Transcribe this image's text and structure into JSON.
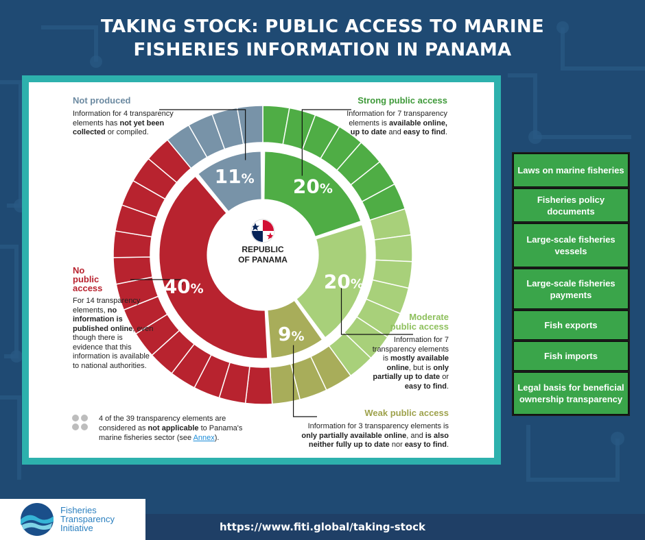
{
  "title_lines": [
    "TAKING STOCK: PUBLIC ACCESS TO MARINE",
    "FISHERIES INFORMATION IN PANAMA"
  ],
  "colors": {
    "strong": "#4fad45",
    "moderate": "#a8d07a",
    "weak": "#a8ad5a",
    "no_access": "#b8232f",
    "not_produced": "#7893a8",
    "panel": "#2db1ad",
    "element_box": "#3aa54a"
  },
  "chart_data": {
    "type": "pie",
    "center_label_lines": [
      "REPUBLIC",
      "OF PANAMA"
    ],
    "unit": "%",
    "slices": [
      {
        "label": "Strong public access",
        "value": 20,
        "elements": 7
      },
      {
        "label": "Moderate public access",
        "value": 20,
        "elements": 7
      },
      {
        "label": "Weak public access",
        "value": 9,
        "elements": 3
      },
      {
        "label": "No public access",
        "value": 40,
        "elements": 14
      },
      {
        "label": "Not produced",
        "value": 11,
        "elements": 4
      }
    ]
  },
  "labels": {
    "not_produced": {
      "title": "Not produced",
      "t1": "Information for 4 transparency elements has ",
      "b1": "not yet been collected",
      "t2": " or compiled."
    },
    "strong": {
      "title": "Strong public access",
      "t1": "Information for 7 transparency elements is ",
      "b1": "available online, up to date",
      "t2": " and ",
      "b2": "easy to find",
      "t3": "."
    },
    "moderate": {
      "title_l1": "Moderate",
      "title_l2": "public access",
      "t1": "Information for 7 transparency elements is ",
      "b1": "mostly available online",
      "t2": ", but is ",
      "b2": "only partially up to date",
      "t3": " or ",
      "b3": "easy to find",
      "t4": "."
    },
    "weak": {
      "title": "Weak public access",
      "t1": "Information for 3 transparency elements is ",
      "b1": "only partially available online",
      "t2": ", and ",
      "b2": "is also neither fully up to date",
      "t3": " nor ",
      "b3": "easy to find",
      "t4": "."
    },
    "no_access": {
      "title_l1": "No",
      "title_l2": "public",
      "title_l3": "access",
      "t1": "For 14 transparency elements, ",
      "b1": "no information is published online",
      "t2": ", even though there is evidence that this information is available to national authorities."
    }
  },
  "na_note": {
    "t1": "4 of the 39 transparency elements are considered as ",
    "b1": "not applicable",
    "t2": " to Panama's marine fisheries sector (see ",
    "link": "Annex",
    "t3": ")."
  },
  "strong_elements": [
    "Laws on marine fisheries",
    "Fisheries policy documents",
    "Large-scale fisheries vessels",
    "Large-scale fisheries payments",
    "Fish exports",
    "Fish imports",
    "Legal basis for beneficial ownership transparency"
  ],
  "footer": {
    "url": "https://www.fiti.global/taking-stock"
  },
  "logo": {
    "lines": [
      "Fisheries",
      "Transparency",
      "Initiative"
    ]
  }
}
